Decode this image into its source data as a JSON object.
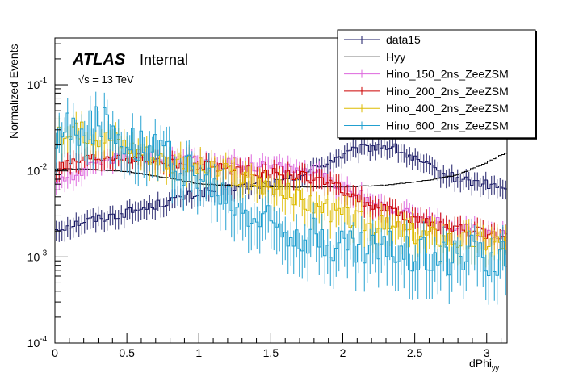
{
  "chart_data": {
    "type": "line",
    "title": "",
    "xlabel_main": "dPhi",
    "xlabel_sub": "yy",
    "ylabel": "Normalized Events",
    "xlim": [
      0,
      3.1416
    ],
    "ylim": [
      0.0001,
      0.35
    ],
    "y_scale": "log",
    "x_ticks": [
      {
        "value": 0,
        "label": "0"
      },
      {
        "value": 0.5,
        "label": "0.5"
      },
      {
        "value": 1,
        "label": "1"
      },
      {
        "value": 1.5,
        "label": "1.5"
      },
      {
        "value": 2,
        "label": "2"
      },
      {
        "value": 2.5,
        "label": "2.5"
      },
      {
        "value": 3,
        "label": "3"
      }
    ],
    "y_ticks": [
      {
        "value": 0.0001,
        "base": "10",
        "exp": "-4"
      },
      {
        "value": 0.001,
        "base": "10",
        "exp": "-3"
      },
      {
        "value": 0.01,
        "base": "10",
        "exp": "-2"
      },
      {
        "value": 0.1,
        "base": "10",
        "exp": "-1"
      }
    ],
    "atlas_label": "ATLAS",
    "atlas_sublabel": "Internal",
    "energy_label": "√s = 13 TeV",
    "legend": {
      "position": "top-right"
    },
    "series": [
      {
        "name": "data15",
        "color": "#1a1a66",
        "nodes": [
          [
            0,
            0.0021
          ],
          [
            0.2,
            0.0026
          ],
          [
            0.4,
            0.003
          ],
          [
            0.6,
            0.0036
          ],
          [
            0.8,
            0.0045
          ],
          [
            1.0,
            0.0055
          ],
          [
            1.2,
            0.0063
          ],
          [
            1.4,
            0.0068
          ],
          [
            1.6,
            0.0075
          ],
          [
            1.8,
            0.0105
          ],
          [
            1.95,
            0.014
          ],
          [
            2.1,
            0.0175
          ],
          [
            2.25,
            0.0195
          ],
          [
            2.35,
            0.019
          ],
          [
            2.5,
            0.0135
          ],
          [
            2.7,
            0.009
          ],
          [
            2.9,
            0.0075
          ],
          [
            3.1416,
            0.0062
          ]
        ],
        "jitter": 0.12,
        "errors": true
      },
      {
        "name": "Hyy",
        "color": "#000000",
        "nodes": [
          [
            0,
            0.0105
          ],
          [
            0.2,
            0.0105
          ],
          [
            0.5,
            0.0098
          ],
          [
            0.8,
            0.0082
          ],
          [
            1.0,
            0.0071
          ],
          [
            1.3,
            0.0066
          ],
          [
            1.7,
            0.0065
          ],
          [
            2.0,
            0.0065
          ],
          [
            2.3,
            0.0068
          ],
          [
            2.6,
            0.0078
          ],
          [
            2.8,
            0.009
          ],
          [
            3.0,
            0.0125
          ],
          [
            3.1416,
            0.0165
          ]
        ],
        "jitter": 0.01,
        "errors": false
      },
      {
        "name": "Hino_150_2ns_ZeeZSM",
        "color": "#dd66dd",
        "nodes": [
          [
            0,
            0.0075
          ],
          [
            0.2,
            0.01
          ],
          [
            0.4,
            0.014
          ],
          [
            0.6,
            0.0145
          ],
          [
            0.8,
            0.0135
          ],
          [
            1.0,
            0.013
          ],
          [
            1.2,
            0.0125
          ],
          [
            1.4,
            0.0115
          ],
          [
            1.6,
            0.011
          ],
          [
            1.8,
            0.0095
          ],
          [
            2.0,
            0.0065
          ],
          [
            2.2,
            0.0045
          ],
          [
            2.5,
            0.003
          ],
          [
            2.8,
            0.0022
          ],
          [
            3.1416,
            0.0018
          ]
        ],
        "jitter": 0.15,
        "errors": true
      },
      {
        "name": "Hino_200_2ns_ZeeZSM",
        "color": "#cc0000",
        "nodes": [
          [
            0,
            0.0105
          ],
          [
            0.2,
            0.013
          ],
          [
            0.4,
            0.0145
          ],
          [
            0.6,
            0.0135
          ],
          [
            0.8,
            0.012
          ],
          [
            1.0,
            0.0112
          ],
          [
            1.2,
            0.0105
          ],
          [
            1.4,
            0.0098
          ],
          [
            1.6,
            0.009
          ],
          [
            1.8,
            0.0082
          ],
          [
            2.0,
            0.006
          ],
          [
            2.2,
            0.004
          ],
          [
            2.5,
            0.0027
          ],
          [
            2.8,
            0.0021
          ],
          [
            3.1416,
            0.0017
          ]
        ],
        "jitter": 0.15,
        "errors": true
      },
      {
        "name": "Hino_400_2ns_ZeeZSM",
        "color": "#ddbb00",
        "nodes": [
          [
            0,
            0.024
          ],
          [
            0.2,
            0.028
          ],
          [
            0.4,
            0.024
          ],
          [
            0.6,
            0.017
          ],
          [
            0.8,
            0.013
          ],
          [
            1.0,
            0.011
          ],
          [
            1.2,
            0.009
          ],
          [
            1.4,
            0.0075
          ],
          [
            1.6,
            0.0055
          ],
          [
            1.8,
            0.004
          ],
          [
            2.0,
            0.003
          ],
          [
            2.2,
            0.0024
          ],
          [
            2.5,
            0.0019
          ],
          [
            2.8,
            0.0016
          ],
          [
            3.1416,
            0.0015
          ]
        ],
        "jitter": 0.3,
        "errors": true
      },
      {
        "name": "Hino_600_2ns_ZeeZSM",
        "color": "#22a0d0",
        "nodes": [
          [
            0,
            0.026
          ],
          [
            0.2,
            0.035
          ],
          [
            0.4,
            0.03
          ],
          [
            0.6,
            0.021
          ],
          [
            0.8,
            0.014
          ],
          [
            1.0,
            0.0085
          ],
          [
            1.2,
            0.0045
          ],
          [
            1.4,
            0.0028
          ],
          [
            1.6,
            0.0022
          ],
          [
            1.8,
            0.0017
          ],
          [
            2.0,
            0.0013
          ],
          [
            2.2,
            0.0012
          ],
          [
            2.5,
            0.0011
          ],
          [
            2.8,
            0.00105
          ],
          [
            3.1416,
            0.001
          ]
        ],
        "jitter": 0.55,
        "errors": true
      }
    ]
  }
}
